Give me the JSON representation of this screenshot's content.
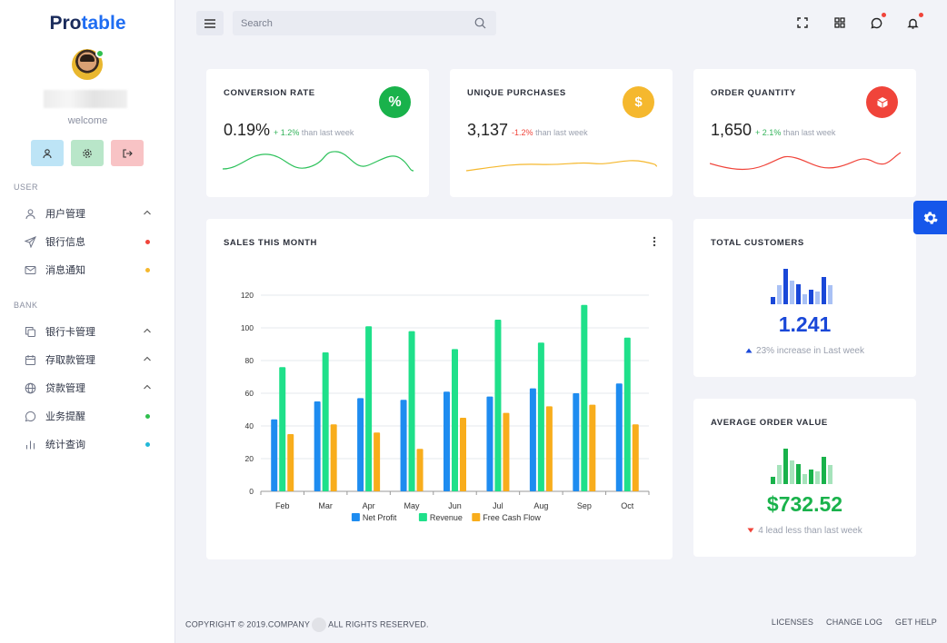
{
  "brand": {
    "pro": "Pro",
    "table": "table"
  },
  "user": {
    "welcome": "welcome"
  },
  "sidebar": {
    "sections": [
      {
        "label": "USER"
      },
      {
        "label": "BANK"
      }
    ],
    "items": [
      {
        "label": "用户管理",
        "icon": "user-icon",
        "trailing": "chevron-up"
      },
      {
        "label": "银行信息",
        "icon": "send-icon",
        "trailing": "dot",
        "dot_color": "#f0443a"
      },
      {
        "label": "消息通知",
        "icon": "mail-icon",
        "trailing": "dot",
        "dot_color": "#f5b82e"
      },
      {
        "label": "银行卡管理",
        "icon": "copy-icon",
        "trailing": "chevron-up"
      },
      {
        "label": "存取款管理",
        "icon": "calendar-icon",
        "trailing": "chevron-up"
      },
      {
        "label": "贷款管理",
        "icon": "globe-icon",
        "trailing": "chevron-up"
      },
      {
        "label": "业务提醒",
        "icon": "chat-icon",
        "trailing": "dot",
        "dot_color": "#2fbf4e"
      },
      {
        "label": "统计查询",
        "icon": "bar-chart-icon",
        "trailing": "dot",
        "dot_color": "#22b8d8"
      }
    ]
  },
  "search": {
    "placeholder": "Search"
  },
  "stats": {
    "conversion": {
      "title": "CONVERSION RATE",
      "value": "0.19%",
      "delta": "+ 1.2%",
      "note": " than last week",
      "icon_text": "%",
      "color": "#19b24b"
    },
    "purchases": {
      "title": "UNIQUE PURCHASES",
      "value": "3,137",
      "delta": "-1.2%",
      "note": " than last week",
      "icon_text": "$",
      "color": "#f5b82e"
    },
    "orders": {
      "title": "ORDER QUANTITY",
      "value": "1,650",
      "delta": "+ 2.1%",
      "note": " than last week",
      "icon_text": "",
      "color": "#f0443a"
    }
  },
  "sales": {
    "title": "SALES THIS MONTH"
  },
  "chart_data": {
    "type": "bar",
    "categories": [
      "Feb",
      "Mar",
      "Apr",
      "May",
      "Jun",
      "Jul",
      "Aug",
      "Sep",
      "Oct"
    ],
    "series": [
      {
        "name": "Net Profit",
        "values": [
          44,
          55,
          57,
          56,
          61,
          58,
          63,
          60,
          66
        ],
        "color": "#1e8cf0"
      },
      {
        "name": "Revenue",
        "values": [
          76,
          85,
          101,
          98,
          87,
          105,
          91,
          114,
          94
        ],
        "color": "#1fe08a"
      },
      {
        "name": "Free Cash Flow",
        "values": [
          35,
          41,
          36,
          26,
          45,
          48,
          52,
          53,
          41
        ],
        "color": "#f8ad1c"
      }
    ],
    "yticks": [
      0,
      20,
      40,
      60,
      80,
      100,
      120
    ],
    "ylim": [
      0,
      120
    ],
    "grid": true,
    "legend": "bottom"
  },
  "customers": {
    "title": "TOTAL CUSTOMERS",
    "value": "1.241",
    "note": "23% increase in Last week",
    "color": "#1a48d8"
  },
  "aov": {
    "title": "AVERAGE ORDER VALUE",
    "value": "$732.52",
    "note": "4 lead less than last week",
    "color": "#19b24b"
  },
  "footer": {
    "copyright_a": "COPYRIGHT © 2019.COMPANY",
    "copyright_b": "ALL RIGHTS RESERVED.",
    "links": [
      "LICENSES",
      "CHANGE LOG",
      "GET HELP"
    ]
  }
}
